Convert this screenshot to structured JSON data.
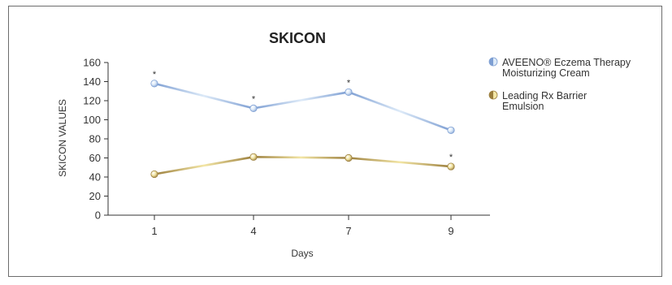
{
  "chart_data": {
    "type": "line",
    "title": "SKICON",
    "xlabel": "Days",
    "ylabel": "SKICON VALUES",
    "x": [
      1,
      4,
      7,
      9
    ],
    "ylim": [
      0,
      160
    ],
    "yticks": [
      0,
      20,
      40,
      60,
      80,
      100,
      120,
      140,
      160
    ],
    "grid": false,
    "legend": "right",
    "significance_marker": "*",
    "series": [
      {
        "name": "AVEENO® Eczema Therapy Moisturizing Cream",
        "legend_lines": [
          "AVEENO® Eczema Therapy",
          "Moisturizing Cream"
        ],
        "values": [
          138,
          112,
          129,
          89
        ],
        "significant": [
          true,
          true,
          true,
          false
        ],
        "color": "#7e9fd3",
        "color_light": "#ddeaf8"
      },
      {
        "name": "Leading Rx Barrier Emulsion",
        "legend_lines": [
          "Leading Rx Barrier",
          "Emulsion"
        ],
        "values": [
          43,
          61,
          60,
          51
        ],
        "significant": [
          false,
          false,
          false,
          true
        ],
        "color": "#9b7e3c",
        "color_light": "#f3e6a6"
      }
    ]
  }
}
